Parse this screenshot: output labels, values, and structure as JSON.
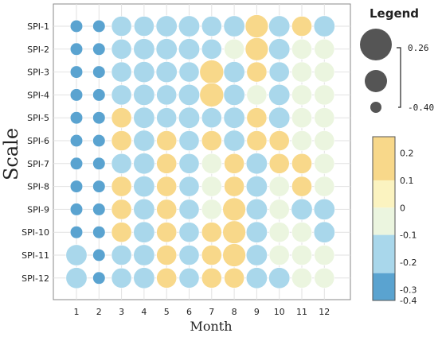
{
  "chart_data": {
    "type": "scatter",
    "xlabel": "Month",
    "ylabel": "Scale",
    "x_categories": [
      "1",
      "2",
      "3",
      "4",
      "5",
      "6",
      "7",
      "8",
      "9",
      "10",
      "11",
      "12"
    ],
    "y_categories": [
      "SPI-1",
      "SPI-2",
      "SPI-3",
      "SPI-4",
      "SPI-5",
      "SPI-6",
      "SPI-7",
      "SPI-8",
      "SPI-9",
      "SPI-10",
      "SPI-11",
      "SPI-12"
    ],
    "values": [
      [
        -0.32,
        -0.32,
        -0.12,
        -0.12,
        -0.22,
        -0.22,
        -0.12,
        -0.22,
        0.2,
        -0.22,
        0.1,
        -0.22
      ],
      [
        -0.32,
        -0.32,
        -0.12,
        -0.22,
        -0.22,
        -0.22,
        -0.12,
        -0.1,
        0.2,
        -0.22,
        -0.1,
        -0.1
      ],
      [
        -0.32,
        -0.32,
        -0.12,
        -0.22,
        -0.22,
        -0.12,
        0.26,
        -0.22,
        0.1,
        -0.12,
        -0.1,
        -0.1
      ],
      [
        -0.32,
        -0.32,
        -0.12,
        -0.22,
        -0.12,
        -0.22,
        0.26,
        -0.22,
        -0.1,
        -0.22,
        -0.1,
        -0.1
      ],
      [
        -0.32,
        -0.32,
        0.1,
        -0.22,
        -0.12,
        -0.22,
        -0.12,
        -0.22,
        0.1,
        -0.22,
        -0.1,
        -0.1
      ],
      [
        -0.32,
        -0.32,
        0.1,
        -0.22,
        0.1,
        -0.12,
        0.1,
        -0.22,
        0.1,
        0.1,
        -0.1,
        -0.1
      ],
      [
        -0.32,
        -0.32,
        -0.12,
        -0.22,
        0.1,
        -0.12,
        -0.1,
        0.1,
        -0.22,
        0.1,
        0.1,
        -0.1
      ],
      [
        -0.32,
        -0.32,
        0.1,
        -0.22,
        0.1,
        -0.12,
        -0.1,
        0.1,
        -0.22,
        -0.1,
        0.1,
        -0.1
      ],
      [
        -0.35,
        -0.32,
        0.1,
        -0.22,
        0.1,
        -0.12,
        -0.1,
        0.2,
        -0.22,
        -0.1,
        -0.22,
        -0.22
      ],
      [
        -0.32,
        -0.32,
        0.1,
        -0.22,
        0.1,
        -0.12,
        0.1,
        0.2,
        -0.22,
        -0.1,
        -0.1,
        -0.22
      ],
      [
        -0.22,
        -0.35,
        -0.12,
        -0.22,
        0.1,
        -0.12,
        0.1,
        0.2,
        -0.22,
        -0.1,
        -0.1,
        -0.1
      ],
      [
        -0.22,
        -0.32,
        -0.12,
        -0.22,
        0.1,
        -0.12,
        0.1,
        0.1,
        -0.22,
        -0.22,
        -0.1,
        -0.1
      ]
    ],
    "size_legend": {
      "title": "Legend",
      "labels": [
        "0.26",
        "-0.40"
      ]
    },
    "colorbar": {
      "ticks": [
        "0.2",
        "0.1",
        "0",
        "-0.1",
        "-0.2",
        "-0.3",
        "-0.4"
      ],
      "colors": [
        "#f8d88a",
        "#fbf3c0",
        "#ebf5df",
        "#a9d7eb",
        "#5aa3d0"
      ]
    },
    "grid": true
  }
}
